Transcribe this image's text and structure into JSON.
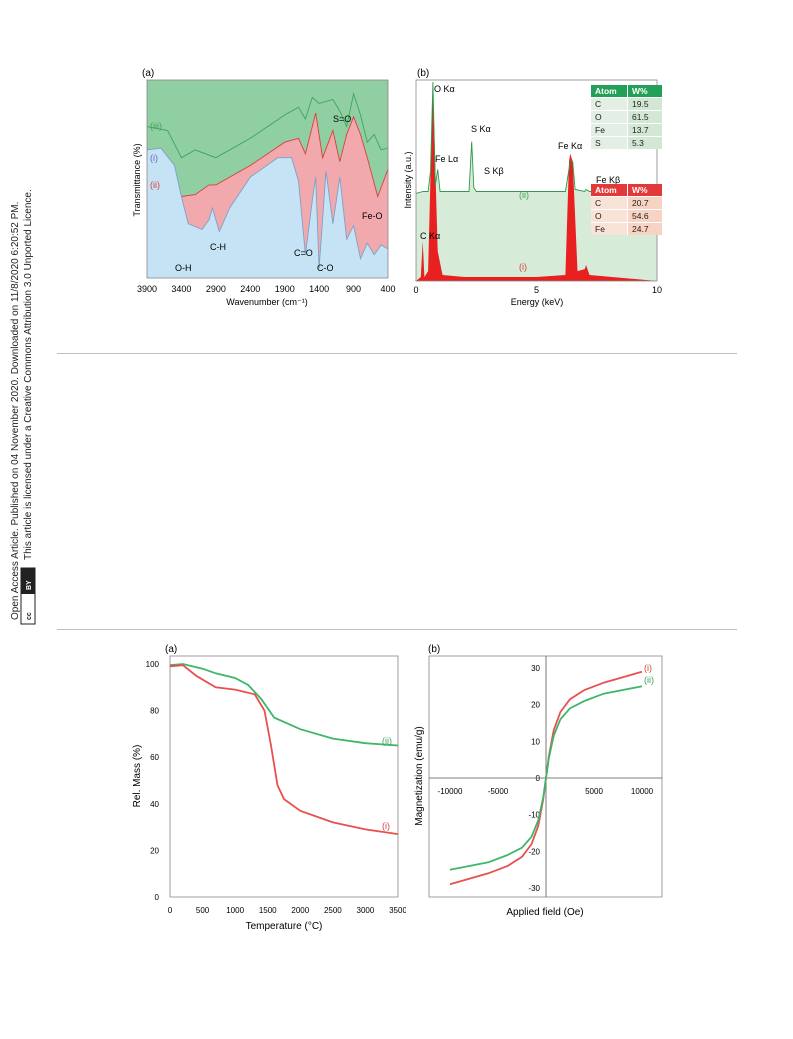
{
  "sidebar": {
    "line1": "Open Access Article. Published on 04 November 2020. Downloaded on 11/8/2020 6:20:52 PM.",
    "line2": "This article is licensed under a Creative Commons Attribution 3.0 Unported Licence.",
    "cc_label": "cc",
    "by_label": "BY"
  },
  "ftir": {
    "panel_label": "(a)",
    "xlabel": "Wavenumber (cm⁻¹)",
    "ylabel": "Transmittance (%)",
    "xticks": [
      "3900",
      "3400",
      "2900",
      "2400",
      "1900",
      "1400",
      "900",
      "400"
    ],
    "series_labels": [
      "(iii)",
      "(i)",
      "(ii)"
    ],
    "annotations": [
      "S=O",
      "Fe-O",
      "C-H",
      "C=O",
      "O-H",
      "C-O"
    ],
    "colors": {
      "iii": "#8fcfa1",
      "ii": "#f2a9ad",
      "i": "#c5e3f5",
      "iii_line": "#3fa45b",
      "ii_line": "#d9403f",
      "i_line": "#7fa0c8"
    }
  },
  "edx": {
    "panel_label": "(b)",
    "xlabel": "Energy (keV)",
    "ylabel": "Intensity (a.u.)",
    "xticks": [
      "0",
      "5",
      "10"
    ],
    "peaks": [
      "O Kα",
      "S Kα",
      "Fe Lα",
      "Fe Kα",
      "S Kβ",
      "Fe Kβ",
      "C Kα"
    ],
    "series_labels": [
      "(ii)",
      "(i)"
    ],
    "table_green": {
      "headers": [
        "Atom",
        "W%"
      ],
      "rows": [
        [
          "C",
          "19.5"
        ],
        [
          "O",
          "61.5"
        ],
        [
          "Fe",
          "13.7"
        ],
        [
          "S",
          "5.3"
        ]
      ]
    },
    "table_red": {
      "headers": [
        "Atom",
        "W%"
      ],
      "rows": [
        [
          "C",
          "20.7"
        ],
        [
          "O",
          "54.6"
        ],
        [
          "Fe",
          "24.7"
        ]
      ]
    }
  },
  "tga": {
    "panel_label": "(a)",
    "xlabel": "Temperature (°C)",
    "ylabel": "Rel. Mass (%)",
    "xticks": [
      "0",
      "500",
      "1000",
      "1500",
      "2000",
      "2500",
      "3000",
      "3500"
    ],
    "yticks": [
      "0",
      "20",
      "40",
      "60",
      "80",
      "100"
    ],
    "series_labels": [
      "(ii)",
      "(i)"
    ]
  },
  "vsm": {
    "panel_label": "(b)",
    "xlabel": "Applied field (Oe)",
    "ylabel": "Magnetization (emu/g)",
    "xticks": [
      "-10000",
      "-5000",
      "5000",
      "10000"
    ],
    "yticks": [
      "30",
      "20",
      "10",
      "0",
      "-10",
      "-20",
      "-30"
    ],
    "series_labels": [
      "(i)",
      "(ii)"
    ]
  },
  "chart_data": [
    {
      "type": "area",
      "title": "",
      "xlabel": "Wavenumber (cm⁻¹)",
      "ylabel": "Transmittance (%)",
      "xlim": [
        3900,
        400
      ],
      "x_reversed": true,
      "series": [
        {
          "name": "(iii)",
          "x": [
            3900,
            3600,
            3400,
            3200,
            2900,
            2400,
            1900,
            1700,
            1600,
            1500,
            1400,
            1200,
            1100,
            1000,
            900,
            800,
            700,
            600,
            500,
            400
          ],
          "values": [
            0.78,
            0.76,
            0.62,
            0.66,
            0.62,
            0.72,
            0.84,
            0.88,
            0.82,
            0.93,
            0.9,
            0.92,
            0.86,
            0.78,
            0.95,
            0.84,
            0.7,
            0.74,
            0.66,
            0.67
          ]
        },
        {
          "name": "(ii)",
          "x": [
            3900,
            3700,
            3500,
            3400,
            3200,
            3000,
            2900,
            2400,
            1900,
            1700,
            1600,
            1450,
            1350,
            1200,
            1100,
            1000,
            900,
            800,
            700,
            550,
            400
          ],
          "values": [
            0.52,
            0.55,
            0.45,
            0.42,
            0.43,
            0.48,
            0.48,
            0.58,
            0.7,
            0.72,
            0.64,
            0.85,
            0.62,
            0.76,
            0.6,
            0.74,
            0.83,
            0.74,
            0.62,
            0.42,
            0.56
          ]
        },
        {
          "name": "(i)",
          "x": [
            3900,
            3700,
            3500,
            3400,
            3300,
            3100,
            3000,
            2950,
            2850,
            2700,
            2400,
            2000,
            1800,
            1700,
            1600,
            1500,
            1450,
            1400,
            1300,
            1200,
            1100,
            1000,
            900,
            800,
            700,
            600,
            500,
            400
          ],
          "values": [
            0.66,
            0.67,
            0.58,
            0.42,
            0.28,
            0.25,
            0.3,
            0.36,
            0.24,
            0.36,
            0.52,
            0.62,
            0.62,
            0.5,
            0.12,
            0.4,
            0.52,
            0.05,
            0.55,
            0.28,
            0.52,
            0.2,
            0.27,
            0.1,
            0.18,
            0.12,
            0.17,
            0.15
          ]
        }
      ]
    },
    {
      "type": "line",
      "title": "",
      "xlabel": "Energy (keV)",
      "ylabel": "Intensity (a.u.)",
      "xlim": [
        0,
        10
      ],
      "series": [
        {
          "name": "(ii)",
          "x": [
            0,
            0.3,
            0.5,
            0.6,
            0.7,
            0.8,
            0.9,
            1.0,
            2.2,
            2.31,
            2.4,
            2.5,
            6.2,
            6.4,
            6.5,
            6.6,
            7.0,
            7.06,
            7.2,
            10
          ],
          "values": [
            0.44,
            0.45,
            0.45,
            0.55,
            1.0,
            0.48,
            0.56,
            0.45,
            0.45,
            0.7,
            0.47,
            0.45,
            0.45,
            0.6,
            0.6,
            0.46,
            0.45,
            0.46,
            0.45,
            0.45
          ]
        },
        {
          "name": "(i)",
          "x": [
            0,
            0.2,
            0.28,
            0.35,
            0.5,
            0.7,
            0.9,
            1.1,
            2.0,
            5.0,
            6.2,
            6.35,
            6.4,
            6.5,
            6.7,
            7.0,
            7.06,
            7.2,
            10
          ],
          "values": [
            0.0,
            0.02,
            0.2,
            0.02,
            0.05,
            1.0,
            0.15,
            0.03,
            0.02,
            0.02,
            0.03,
            0.6,
            0.64,
            0.6,
            0.05,
            0.06,
            0.08,
            0.03,
            0.0
          ]
        }
      ]
    },
    {
      "type": "line",
      "title": "",
      "xlabel": "Temperature (°C)",
      "ylabel": "Rel. Mass (%)",
      "xlim": [
        0,
        3500
      ],
      "ylim": [
        0,
        100
      ],
      "series": [
        {
          "name": "(ii)",
          "x": [
            0,
            200,
            500,
            700,
            1000,
            1200,
            1400,
            1600,
            2000,
            2500,
            3000,
            3500
          ],
          "values": [
            99.5,
            100,
            98,
            96,
            94,
            91,
            85,
            77,
            72,
            68,
            66,
            65
          ]
        },
        {
          "name": "(i)",
          "x": [
            0,
            200,
            400,
            700,
            1000,
            1300,
            1450,
            1550,
            1650,
            1750,
            2000,
            2500,
            3000,
            3500
          ],
          "values": [
            99,
            99.5,
            95,
            90,
            89,
            87,
            80,
            65,
            48,
            42,
            37,
            32,
            29,
            27
          ]
        }
      ]
    },
    {
      "type": "line",
      "title": "",
      "xlabel": "Applied field (Oe)",
      "ylabel": "Magnetization (emu/g)",
      "xlim": [
        -10000,
        10000
      ],
      "ylim": [
        -30,
        30
      ],
      "series": [
        {
          "name": "(i)",
          "x": [
            -10000,
            -8000,
            -6000,
            -4000,
            -2500,
            -1500,
            -800,
            -300,
            0,
            300,
            800,
            1500,
            2500,
            4000,
            6000,
            8000,
            10000
          ],
          "values": [
            -29,
            -27.5,
            -26,
            -24,
            -21.5,
            -18,
            -13,
            -6,
            0,
            6,
            13,
            18,
            21.5,
            24,
            26,
            27.5,
            29
          ]
        },
        {
          "name": "(ii)",
          "x": [
            -10000,
            -8000,
            -6000,
            -4000,
            -2500,
            -1500,
            -800,
            -300,
            0,
            300,
            800,
            1500,
            2500,
            4000,
            6000,
            8000,
            10000
          ],
          "values": [
            -25,
            -24,
            -23,
            -21,
            -19,
            -16,
            -11.5,
            -5.5,
            0,
            5.5,
            11.5,
            16,
            19,
            21,
            23,
            24,
            25
          ]
        }
      ]
    }
  ]
}
